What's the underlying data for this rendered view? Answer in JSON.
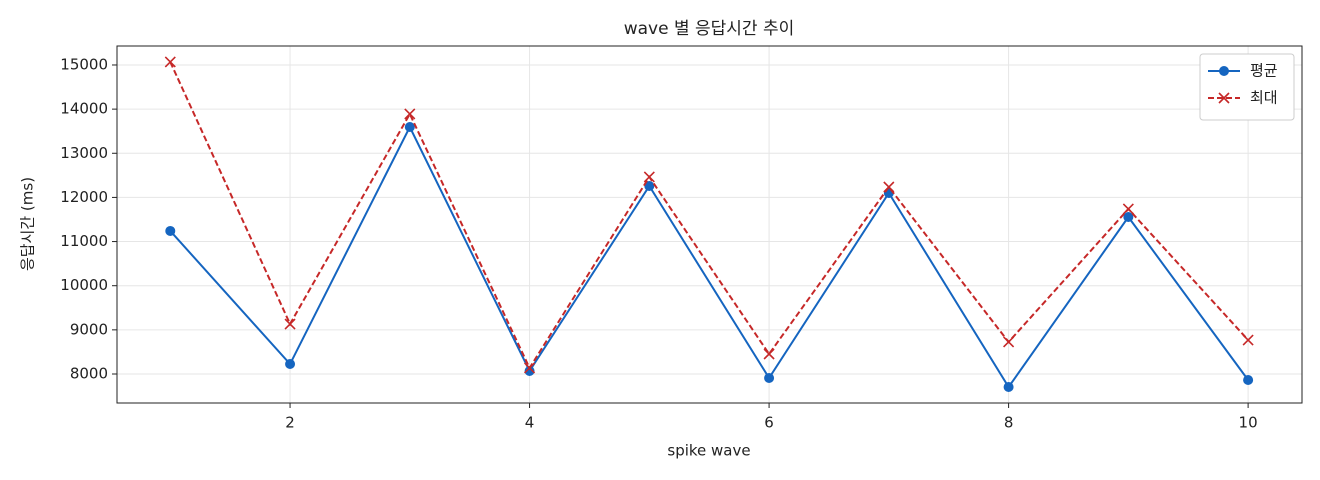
{
  "chart_data": {
    "type": "line",
    "title": "wave 별 응답시간 추이",
    "x_label": "spike wave",
    "y_label": "응답시간 (ms)",
    "x": [
      1,
      2,
      3,
      4,
      5,
      6,
      7,
      8,
      9,
      10
    ],
    "series": [
      {
        "name": "평균",
        "color": "#1565c0",
        "marker": "circle",
        "dash": "solid",
        "values": [
          11240,
          8226,
          13595,
          8068,
          12259,
          7909,
          12100,
          7705,
          11556,
          7864
        ]
      },
      {
        "name": "최대",
        "color": "#c62828",
        "marker": "x",
        "dash": "dashed",
        "values": [
          15068,
          9132,
          13890,
          8136,
          12463,
          8453,
          12236,
          8725,
          11738,
          8770
        ]
      }
    ],
    "xlim": [
      0.555,
      10.45
    ],
    "ylim": [
      7343,
      15430
    ],
    "xticks": [
      2,
      4,
      6,
      8,
      10
    ],
    "yticks": [
      8000,
      9000,
      10000,
      11000,
      12000,
      13000,
      14000,
      15000
    ],
    "grid": true,
    "legend": "upper right"
  }
}
